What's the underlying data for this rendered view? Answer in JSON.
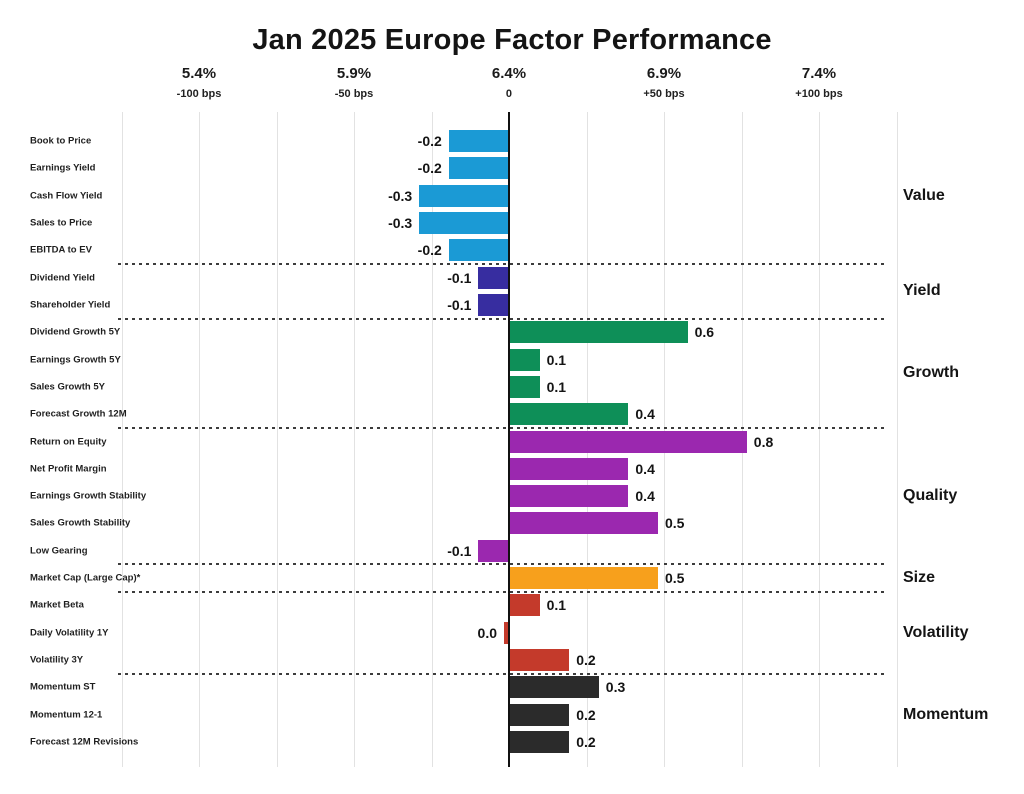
{
  "title": "Jan 2025 Europe Factor Performance",
  "colors": {
    "text": "#141414",
    "gridline": "#e2e2e2",
    "zero_line": "#111111",
    "separator": "#3c3c3c",
    "background": "#ffffff"
  },
  "chart_data": {
    "type": "bar",
    "orientation": "horizontal",
    "title": "Jan 2025 Europe Factor Performance",
    "legend": "none",
    "grid": "vertical-light",
    "x_axis": {
      "ticks": [
        {
          "pct": "5.4%",
          "bps": "-100 bps",
          "bps_value": -100
        },
        {
          "pct": "5.9%",
          "bps": "-50 bps",
          "bps_value": -50
        },
        {
          "pct": "6.4%",
          "bps": "0",
          "bps_value": 0
        },
        {
          "pct": "6.9%",
          "bps": "+50 bps",
          "bps_value": 50
        },
        {
          "pct": "7.4%",
          "bps": "+100 bps",
          "bps_value": 100
        }
      ],
      "range_bps": [
        -125,
        125
      ],
      "gridlines_every_bps": 25
    },
    "groups": [
      {
        "label": "Value",
        "color": "#1B9AD5",
        "factors": [
          {
            "label": "Book to Price",
            "value": -0.2,
            "display": "-0.2"
          },
          {
            "label": "Earnings Yield",
            "value": -0.2,
            "display": "-0.2"
          },
          {
            "label": "Cash Flow Yield",
            "value": -0.3,
            "display": "-0.3"
          },
          {
            "label": "Sales to Price",
            "value": -0.3,
            "display": "-0.3"
          },
          {
            "label": "EBITDA to EV",
            "value": -0.2,
            "display": "-0.2"
          }
        ]
      },
      {
        "label": "Yield",
        "color": "#372DA0",
        "factors": [
          {
            "label": "Dividend Yield",
            "value": -0.1,
            "display": "-0.1"
          },
          {
            "label": "Shareholder Yield",
            "value": -0.1,
            "display": "-0.1"
          }
        ]
      },
      {
        "label": "Growth",
        "color": "#0E8F58",
        "factors": [
          {
            "label": "Dividend Growth 5Y",
            "value": 0.6,
            "display": "0.6"
          },
          {
            "label": "Earnings Growth 5Y",
            "value": 0.1,
            "display": "0.1"
          },
          {
            "label": "Sales Growth 5Y",
            "value": 0.1,
            "display": "0.1"
          },
          {
            "label": "Forecast Growth 12M",
            "value": 0.4,
            "display": "0.4"
          }
        ]
      },
      {
        "label": "Quality",
        "color": "#9B28AF",
        "factors": [
          {
            "label": "Return on Equity",
            "value": 0.8,
            "display": "0.8"
          },
          {
            "label": "Net Profit Margin",
            "value": 0.4,
            "display": "0.4"
          },
          {
            "label": "Earnings Growth Stability",
            "value": 0.4,
            "display": "0.4"
          },
          {
            "label": "Sales Growth Stability",
            "value": 0.5,
            "display": "0.5"
          },
          {
            "label": "Low Gearing",
            "value": -0.1,
            "display": "-0.1"
          }
        ]
      },
      {
        "label": "Size",
        "color": "#F7A01C",
        "factors": [
          {
            "label": "Market Cap (Large Cap)*",
            "value": 0.5,
            "display": "0.5"
          }
        ]
      },
      {
        "label": "Volatility",
        "color": "#C43A2B",
        "factors": [
          {
            "label": "Market Beta",
            "value": 0.1,
            "display": "0.1"
          },
          {
            "label": "Daily Volatility 1Y",
            "value": 0.0,
            "display": "0.0"
          },
          {
            "label": "Volatility 3Y",
            "value": 0.2,
            "display": "0.2"
          }
        ]
      },
      {
        "label": "Momentum",
        "color": "#2B2B2B",
        "factors": [
          {
            "label": "Momentum ST",
            "value": 0.3,
            "display": "0.3"
          },
          {
            "label": "Momentum 12-1",
            "value": 0.2,
            "display": "0.2"
          },
          {
            "label": "Forecast 12M Revisions",
            "value": 0.2,
            "display": "0.2"
          }
        ]
      }
    ]
  }
}
